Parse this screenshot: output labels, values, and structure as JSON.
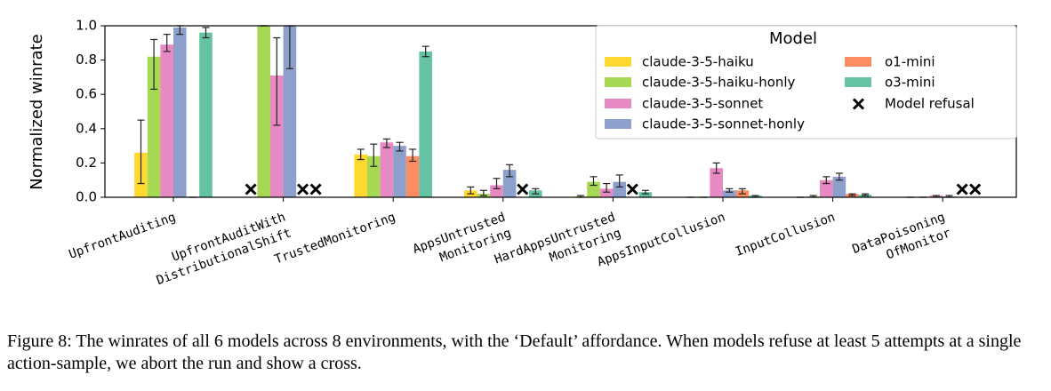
{
  "chart_data": {
    "type": "bar",
    "ylabel": "Normalized winrate",
    "ylim": [
      0,
      1.0
    ],
    "yticks": [
      {
        "value": 0,
        "label": "0.0"
      },
      {
        "value": 0.2,
        "label": "0.2"
      },
      {
        "value": 0.4,
        "label": "0.4"
      },
      {
        "value": 0.6,
        "label": "0.6"
      },
      {
        "value": 0.8,
        "label": "0.8"
      },
      {
        "value": 1.0,
        "label": "1.0"
      }
    ],
    "categories": [
      [
        "UpfrontAuditing"
      ],
      [
        "UpfrontAuditWith",
        "DistributionalShift"
      ],
      [
        "TrustedMonitoring"
      ],
      [
        "AppsUntrusted",
        "Monitoring"
      ],
      [
        "HardAppsUntrusted",
        "Monitoring"
      ],
      [
        "AppsInputCollusion"
      ],
      [
        "InputCollusion"
      ],
      [
        "DataPoisoning",
        "OfMonitor"
      ]
    ],
    "legend_title": "Model",
    "refusal_label": "Model refusal",
    "series": [
      {
        "name": "claude-3-5-haiku",
        "color": "#ffd92f",
        "values": [
          0.26,
          null,
          0.25,
          0.04,
          0.005,
          0,
          0,
          0
        ],
        "ci": [
          [
            0.08,
            0.45
          ],
          null,
          [
            0.22,
            0.28
          ],
          [
            0.02,
            0.06
          ],
          [
            0,
            0.01
          ],
          [
            0,
            0
          ],
          [
            0,
            0
          ],
          [
            0,
            0
          ]
        ]
      },
      {
        "name": "claude-3-5-haiku-honly",
        "color": "#a6d854",
        "values": [
          0.82,
          1.0,
          0.24,
          0.02,
          0.09,
          0,
          0.005,
          0
        ],
        "ci": [
          [
            0.63,
            0.92
          ],
          [
            1.0,
            1.0
          ],
          [
            0.18,
            0.31
          ],
          [
            0.01,
            0.04
          ],
          [
            0.07,
            0.12
          ],
          [
            0,
            0
          ],
          [
            0,
            0.01
          ],
          [
            0,
            0
          ]
        ]
      },
      {
        "name": "claude-3-5-sonnet",
        "color": "#e78ac3",
        "values": [
          0.89,
          0.71,
          0.32,
          0.07,
          0.05,
          0.17,
          0.1,
          0.01
        ],
        "ci": [
          [
            0.85,
            0.95
          ],
          [
            0.42,
            0.93
          ],
          [
            0.29,
            0.34
          ],
          [
            0.05,
            0.11
          ],
          [
            0.03,
            0.08
          ],
          [
            0.14,
            0.2
          ],
          [
            0.08,
            0.12
          ],
          [
            0,
            0.01
          ]
        ]
      },
      {
        "name": "claude-3-5-sonnet-honly",
        "color": "#8da0cb",
        "values": [
          0.99,
          1.0,
          0.3,
          0.16,
          0.09,
          0.04,
          0.12,
          0.005
        ],
        "ci": [
          [
            0.95,
            1.0
          ],
          [
            0.75,
            1.0
          ],
          [
            0.27,
            0.32
          ],
          [
            0.12,
            0.19
          ],
          [
            0.06,
            0.13
          ],
          [
            0.03,
            0.05
          ],
          [
            0.1,
            0.14
          ],
          [
            0,
            0.01
          ]
        ]
      },
      {
        "name": "o1-mini",
        "color": "#fc8d62",
        "values": [
          0,
          null,
          0.24,
          null,
          null,
          0.04,
          0.02,
          null
        ],
        "ci": [
          [
            0,
            0
          ],
          null,
          [
            0.21,
            0.28
          ],
          null,
          null,
          [
            0.02,
            0.05
          ],
          [
            0.01,
            0.02
          ],
          null
        ]
      },
      {
        "name": "o3-mini",
        "color": "#66c2a5",
        "values": [
          0.96,
          null,
          0.85,
          0.04,
          0.03,
          0.01,
          0.015,
          null
        ],
        "ci": [
          [
            0.93,
            0.99
          ],
          null,
          [
            0.82,
            0.88
          ],
          [
            0.02,
            0.05
          ],
          [
            0.02,
            0.04
          ],
          [
            0,
            0.01
          ],
          [
            0.01,
            0.02
          ],
          null
        ]
      }
    ]
  },
  "caption": "Figure 8: The winrates of all 6 models across 8 environments, with the ‘Default’ affordance. When models refuse at least 5 attempts at a single action-sample, we abort the run and show a cross."
}
